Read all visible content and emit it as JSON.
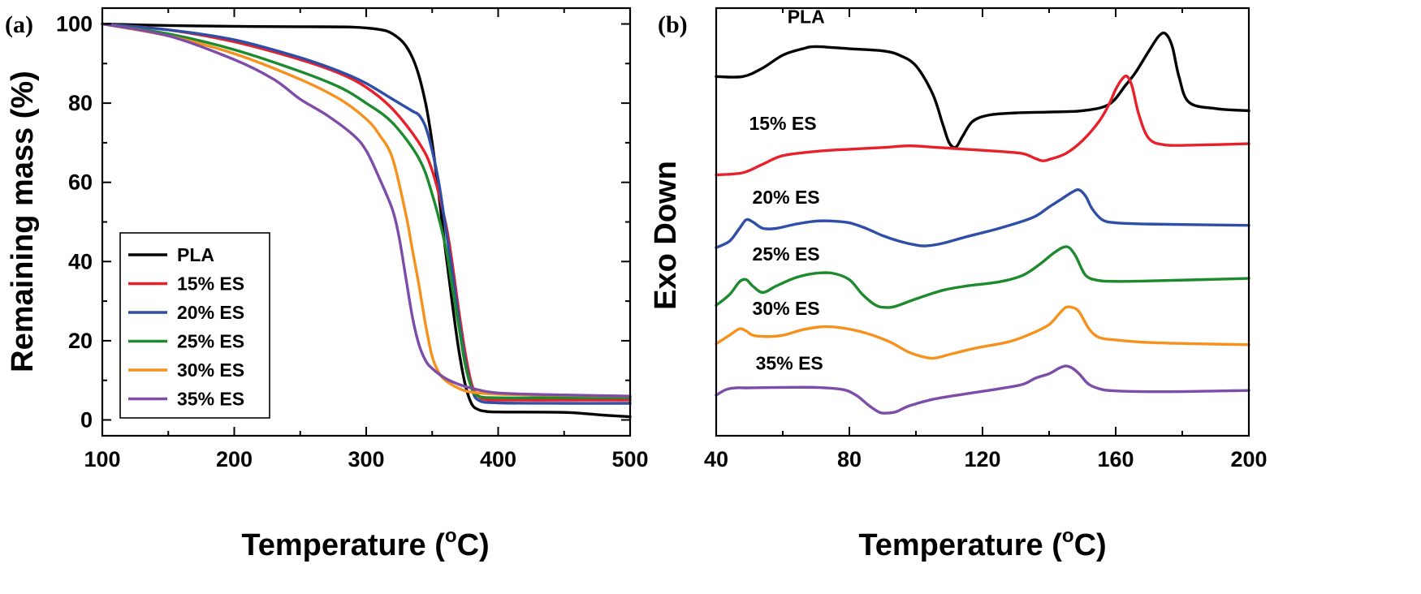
{
  "figure": {
    "panel_a_letter": "(a)",
    "panel_b_letter": "(b)"
  },
  "colors": {
    "PLA": "#000000",
    "ES15": "#e8202a",
    "ES20": "#2e4ea8",
    "ES25": "#1e8a2e",
    "ES30": "#f5921e",
    "ES35": "#7d4ca8"
  },
  "chart_data": [
    {
      "id": "tga",
      "type": "line",
      "title": "",
      "xlabel": "Temperature (°C)",
      "xlabel_main": "Temperature (",
      "xlabel_sup": "o",
      "xlabel_end": "C)",
      "ylabel": "Remaining mass (%)",
      "xlim": [
        100,
        500
      ],
      "ylim": [
        -4,
        104
      ],
      "xticks": [
        100,
        200,
        300,
        400,
        500
      ],
      "yticks": [
        0,
        20,
        40,
        60,
        80,
        100
      ],
      "grid": false,
      "legend": "lower-left",
      "series": [
        {
          "name": "PLA",
          "color_key": "PLA",
          "x": [
            100,
            150,
            200,
            250,
            290,
            310,
            320,
            330,
            338,
            345,
            350,
            355,
            360,
            365,
            370,
            375,
            380,
            385,
            390,
            400,
            450,
            480,
            500
          ],
          "y": [
            100,
            99.6,
            99.4,
            99.3,
            99.2,
            98.6,
            97.5,
            94.5,
            89,
            80,
            70,
            57,
            43,
            30,
            18,
            9,
            4,
            2.6,
            2.2,
            2.0,
            1.9,
            1.2,
            0.8
          ]
        },
        {
          "name": "15% ES",
          "color_key": "ES15",
          "x": [
            100,
            150,
            200,
            250,
            280,
            300,
            320,
            340,
            350,
            360,
            365,
            370,
            375,
            380,
            385,
            390,
            400,
            450,
            500
          ],
          "y": [
            100,
            98.5,
            95.5,
            91,
            87.5,
            84,
            78.5,
            70,
            63,
            50,
            40,
            28,
            17,
            9,
            6,
            5.2,
            5,
            5,
            5
          ]
        },
        {
          "name": "20% ES",
          "color_key": "ES20",
          "x": [
            100,
            150,
            200,
            250,
            280,
            300,
            320,
            335,
            340,
            345,
            350,
            355,
            360,
            365,
            370,
            375,
            380,
            385,
            400,
            450,
            500
          ],
          "y": [
            100,
            98.5,
            96,
            91.5,
            88,
            85,
            81,
            78,
            77,
            74,
            68,
            60,
            49,
            38,
            26,
            15,
            8,
            5,
            4.3,
            4.2,
            4.2
          ]
        },
        {
          "name": "25% ES",
          "color_key": "ES25",
          "x": [
            100,
            150,
            200,
            250,
            280,
            300,
            320,
            340,
            350,
            360,
            365,
            370,
            375,
            380,
            385,
            400,
            450,
            500
          ],
          "y": [
            100,
            97.5,
            93.5,
            88,
            84,
            80,
            75,
            66,
            57,
            44,
            34,
            24,
            14,
            8,
            6,
            5.6,
            5.6,
            5.6
          ]
        },
        {
          "name": "30% ES",
          "color_key": "ES30",
          "x": [
            100,
            150,
            200,
            250,
            280,
            300,
            310,
            320,
            330,
            335,
            340,
            345,
            350,
            355,
            360,
            370,
            380,
            400,
            450,
            500
          ],
          "y": [
            100,
            97,
            92.5,
            86,
            81,
            76,
            72,
            66,
            52,
            43,
            34,
            24,
            16,
            12,
            10,
            8,
            7,
            6.5,
            6.2,
            6
          ]
        },
        {
          "name": "35% ES",
          "color_key": "ES35",
          "x": [
            100,
            150,
            200,
            230,
            250,
            270,
            290,
            300,
            310,
            320,
            325,
            330,
            335,
            340,
            345,
            350,
            360,
            370,
            380,
            400,
            450,
            500
          ],
          "y": [
            100,
            97,
            91,
            86,
            81,
            77,
            72,
            68,
            61,
            53,
            46,
            36,
            26,
            19,
            15,
            13,
            10.5,
            9,
            8,
            6.8,
            6.3,
            6
          ]
        }
      ]
    },
    {
      "id": "dsc",
      "type": "line",
      "title": "",
      "xlabel": "Temperature (°C)",
      "xlabel_main": "Temperature (",
      "xlabel_sup": "o",
      "xlabel_end": "C)",
      "ylabel": "Exo Down",
      "xlim": [
        40,
        200
      ],
      "ylim": [
        0,
        100
      ],
      "xticks": [
        40,
        80,
        120,
        160,
        200
      ],
      "yticks": [],
      "grid": false,
      "legend": "none",
      "series": [
        {
          "name": "PLA",
          "color_key": "PLA",
          "x": [
            40,
            48,
            54,
            60,
            66,
            70,
            80,
            90,
            95,
            100,
            105,
            108,
            110,
            112,
            114,
            117,
            122,
            130,
            140,
            150,
            158,
            163,
            166,
            170,
            173,
            175,
            177,
            179,
            182,
            190,
            200
          ],
          "y": [
            84,
            84,
            86,
            89,
            90.5,
            91,
            90.5,
            90,
            89,
            86.5,
            80,
            73,
            68.5,
            67.5,
            70,
            73.5,
            75,
            75.5,
            75.7,
            76,
            77.5,
            82,
            85,
            90,
            93.5,
            94,
            91,
            84,
            78,
            76.5,
            76
          ]
        },
        {
          "name": "15% ES",
          "color_key": "ES15",
          "x": [
            40,
            48,
            54,
            60,
            70,
            80,
            90,
            98,
            105,
            115,
            125,
            132,
            136,
            138,
            140,
            145,
            150,
            155,
            158,
            160,
            162,
            163.5,
            165,
            167,
            170,
            175,
            185,
            200
          ],
          "y": [
            61,
            61.5,
            63.5,
            65.5,
            66.5,
            67,
            67.4,
            67.8,
            67.5,
            67,
            66.5,
            66,
            64.8,
            64.3,
            64.6,
            66,
            69,
            73.5,
            77.5,
            81,
            83.5,
            84,
            81.5,
            75,
            69.5,
            68,
            68,
            68.3
          ]
        },
        {
          "name": "20% ES",
          "color_key": "ES20",
          "x": [
            40,
            44,
            47,
            49,
            51,
            54,
            58,
            64,
            70,
            75,
            80,
            85,
            90,
            95,
            100,
            103,
            108,
            115,
            125,
            135,
            140,
            144,
            147,
            149,
            151,
            153,
            156,
            160,
            170,
            200
          ],
          "y": [
            44,
            45.5,
            48.5,
            50.5,
            50,
            48.5,
            48.5,
            49.5,
            50.2,
            50.2,
            49.8,
            48.5,
            46.8,
            45.5,
            44.6,
            44.4,
            45,
            46.5,
            48.5,
            51,
            53.5,
            55.5,
            57,
            57.5,
            56,
            53,
            50.5,
            49.8,
            49.5,
            49.2
          ]
        },
        {
          "name": "25% ES",
          "color_key": "ES25",
          "x": [
            40,
            44,
            47,
            49,
            51,
            54,
            58,
            64,
            70,
            75,
            80,
            84,
            88,
            91,
            94,
            100,
            108,
            115,
            125,
            132,
            137,
            141,
            144,
            146,
            148,
            151,
            155,
            160,
            170,
            200
          ],
          "y": [
            30.5,
            33,
            36,
            36.5,
            35,
            33.5,
            35,
            37,
            38,
            38,
            36.5,
            33,
            30.5,
            30,
            30.3,
            32,
            34,
            35,
            36,
            37.5,
            40,
            42.5,
            44,
            44,
            42,
            37.5,
            36.3,
            36.1,
            36.2,
            36.8
          ]
        },
        {
          "name": "30% ES",
          "color_key": "ES30",
          "x": [
            40,
            44,
            47,
            49,
            51,
            55,
            60,
            66,
            72,
            78,
            85,
            92,
            98,
            103,
            106,
            110,
            118,
            128,
            135,
            140,
            143,
            145,
            147,
            149,
            152,
            155,
            160,
            170,
            185,
            200
          ],
          "y": [
            21.5,
            23.5,
            25,
            24.5,
            23.5,
            23.2,
            23.5,
            24.8,
            25.5,
            25.2,
            24,
            22,
            19.5,
            18.3,
            18.2,
            19,
            20.5,
            22,
            24,
            26,
            28.5,
            30,
            30,
            29,
            25,
            23,
            22.4,
            21.8,
            21.5,
            21.3
          ]
        },
        {
          "name": "35% ES",
          "color_key": "ES35",
          "x": [
            40,
            43,
            46,
            50,
            60,
            70,
            78,
            82,
            86,
            89,
            91,
            94,
            98,
            105,
            115,
            125,
            132,
            136,
            140,
            143,
            145,
            147,
            149,
            152,
            156,
            160,
            170,
            185,
            200
          ],
          "y": [
            9.5,
            10.8,
            11.2,
            11.2,
            11.3,
            11.3,
            10.8,
            9.5,
            7,
            5.5,
            5.3,
            5.6,
            7,
            8.5,
            9.8,
            11,
            12,
            13.5,
            14.5,
            15.8,
            16.3,
            15.8,
            14.5,
            12,
            10.8,
            10.5,
            10.3,
            10.4,
            10.6
          ]
        }
      ],
      "curve_labels": [
        {
          "series": "PLA",
          "text": "PLA",
          "x": 67,
          "y": 96.5
        },
        {
          "series": "15% ES",
          "text": "15% ES",
          "x": 60,
          "y": 71.5
        },
        {
          "series": "20% ES",
          "text": "20% ES",
          "x": 61,
          "y": 54.3
        },
        {
          "series": "25% ES",
          "text": "25% ES",
          "x": 61,
          "y": 41
        },
        {
          "series": "30% ES",
          "text": "30% ES",
          "x": 61,
          "y": 28.3
        },
        {
          "series": "35% ES",
          "text": "35% ES",
          "x": 62,
          "y": 15.5
        }
      ]
    }
  ]
}
